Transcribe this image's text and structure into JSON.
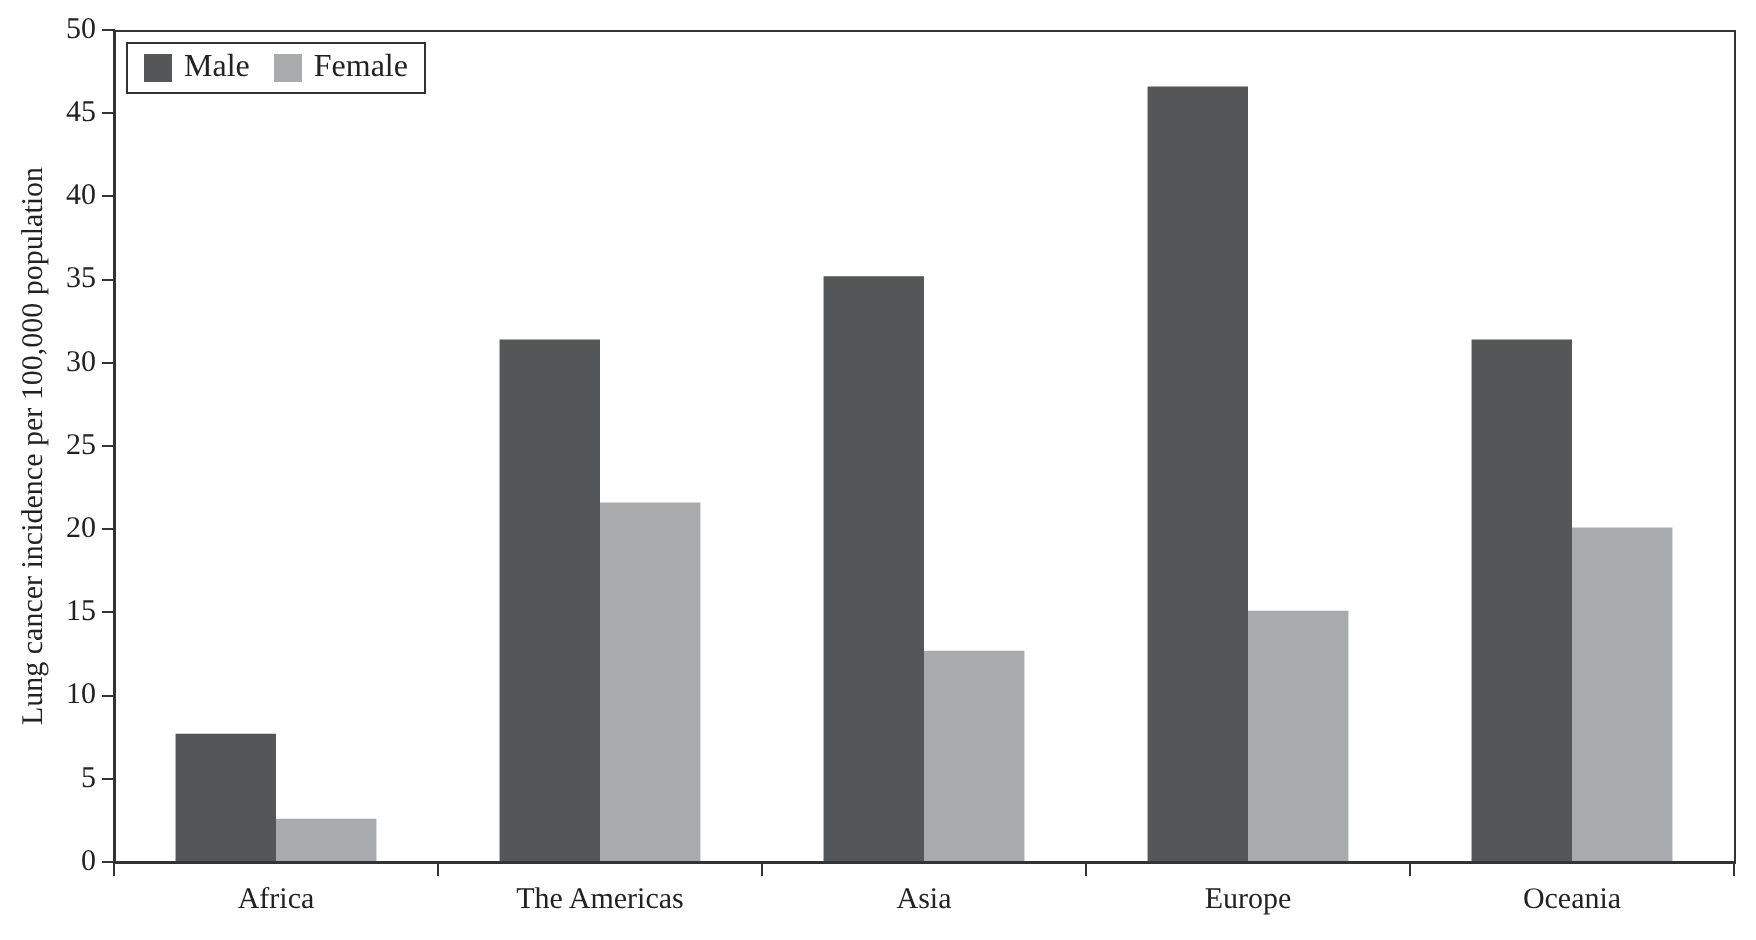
{
  "chart_data": {
    "type": "bar",
    "ylabel": "Lung cancer incidence per 100,000 population",
    "categories": [
      "Africa",
      "The Americas",
      "Asia",
      "Europe",
      "Oceania"
    ],
    "series": [
      {
        "name": "Male",
        "color": "#555658",
        "values": [
          7.7,
          31.4,
          35.2,
          46.6,
          31.4
        ]
      },
      {
        "name": "Female",
        "color": "#a9aaac",
        "values": [
          2.6,
          21.6,
          12.7,
          15.1,
          20.1
        ]
      }
    ],
    "ylim": [
      0,
      50
    ],
    "yticks": [
      0,
      5,
      10,
      15,
      20,
      25,
      30,
      35,
      40,
      45,
      50
    ],
    "grid": false,
    "legend": "top left"
  }
}
